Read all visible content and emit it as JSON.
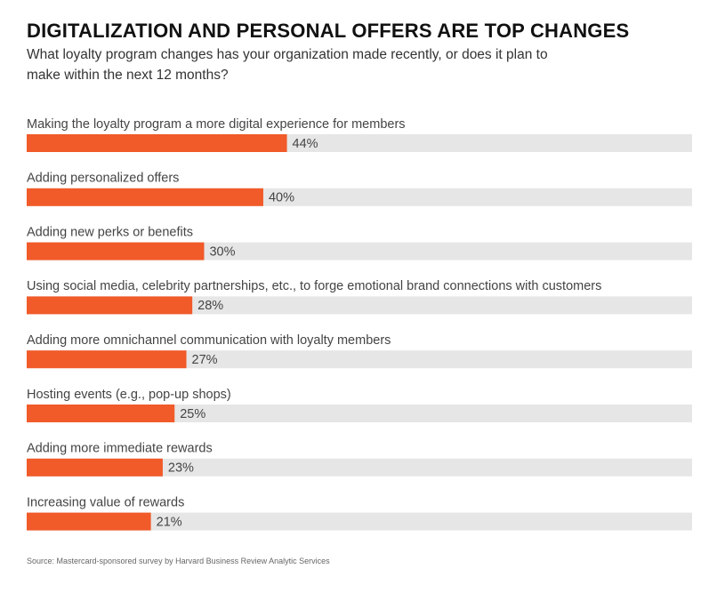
{
  "chart_data": {
    "type": "hbar",
    "title": "DIGITALIZATION AND PERSONAL OFFERS ARE TOP CHANGES",
    "subtitle": "What loyalty program changes has your organization made recently, or does it plan to make within the next 12 months?",
    "categories": [
      "Making the loyalty program a more digital experience for members",
      "Adding personalized offers",
      "Adding new perks or benefits",
      "Using social media, celebrity partnerships, etc., to forge emotional brand connections with customers",
      "Adding more omnichannel communication with loyalty members",
      "Hosting events (e.g., pop-up shops)",
      "Adding more immediate rewards",
      "Increasing value of rewards"
    ],
    "values": [
      44,
      40,
      30,
      28,
      27,
      25,
      23,
      21
    ],
    "value_labels": [
      "44%",
      "40%",
      "30%",
      "28%",
      "27%",
      "25%",
      "23%",
      "21%"
    ],
    "color": "#f15a29",
    "track_color": "#e6e6e6",
    "xlim": [
      0,
      112.5
    ],
    "source": "Source: Mastercard-sponsored survey by Harvard Business Review Analytic Services"
  }
}
